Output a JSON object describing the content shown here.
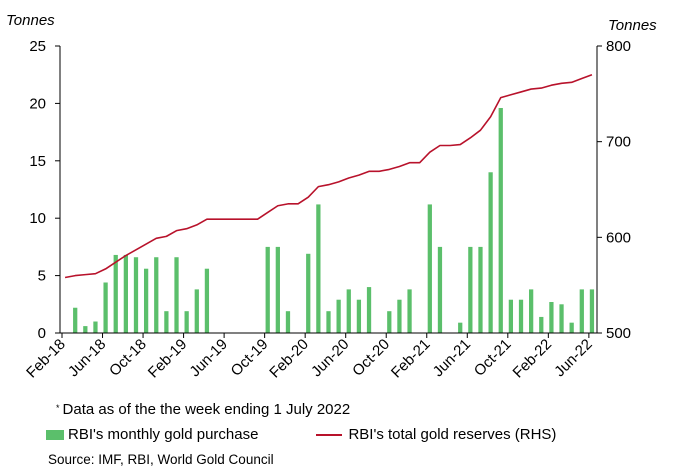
{
  "chart_data": {
    "type": "bar+line",
    "left_axis": {
      "unit_label": "Tonnes",
      "ylim": [
        0,
        25
      ],
      "ticks": [
        0,
        5,
        10,
        15,
        20,
        25
      ]
    },
    "right_axis": {
      "unit_label": "Tonnes",
      "ylim": [
        500,
        800
      ],
      "ticks": [
        500,
        600,
        700,
        800
      ]
    },
    "x_tick_labels": [
      "Feb-18",
      "Jun-18",
      "Oct-18",
      "Feb-19",
      "Jun-19",
      "Oct-19",
      "Feb-20",
      "Jun-20",
      "Oct-20",
      "Feb-21",
      "Jun-21",
      "Oct-21",
      "Feb-22",
      "Jun-22"
    ],
    "x_tick_index": [
      0,
      4,
      8,
      12,
      16,
      20,
      24,
      28,
      32,
      36,
      40,
      44,
      48,
      52
    ],
    "months": [
      "Feb-18",
      "Mar-18",
      "Apr-18",
      "May-18",
      "Jun-18",
      "Jul-18",
      "Aug-18",
      "Sep-18",
      "Oct-18",
      "Nov-18",
      "Dec-18",
      "Jan-19",
      "Feb-19",
      "Mar-19",
      "Apr-19",
      "May-19",
      "Jun-19",
      "Jul-19",
      "Aug-19",
      "Sep-19",
      "Oct-19",
      "Nov-19",
      "Dec-19",
      "Jan-20",
      "Feb-20",
      "Mar-20",
      "Apr-20",
      "May-20",
      "Jun-20",
      "Jul-20",
      "Aug-20",
      "Sep-20",
      "Oct-20",
      "Nov-20",
      "Dec-20",
      "Jan-21",
      "Feb-21",
      "Mar-21",
      "Apr-21",
      "May-21",
      "Jun-21",
      "Jul-21",
      "Aug-21",
      "Sep-21",
      "Oct-21",
      "Nov-21",
      "Dec-21",
      "Jan-22",
      "Feb-22",
      "Mar-22",
      "Apr-22",
      "May-22",
      "Jun-22"
    ],
    "series": [
      {
        "name": "RBI's monthly gold purchase",
        "type": "bar",
        "axis": "left",
        "color": "#5bbf6b",
        "values": [
          0,
          2.2,
          0.6,
          1.0,
          4.4,
          6.8,
          6.8,
          6.6,
          5.6,
          6.6,
          1.9,
          6.6,
          1.9,
          3.8,
          5.6,
          0,
          0,
          0,
          0,
          0,
          7.5,
          7.5,
          1.9,
          0,
          6.9,
          11.2,
          1.9,
          2.9,
          3.8,
          2.9,
          4.0,
          0,
          1.9,
          2.9,
          3.8,
          0,
          11.2,
          7.5,
          0,
          0.9,
          7.5,
          7.5,
          14.0,
          19.6,
          2.9,
          2.9,
          3.8,
          1.4,
          2.7,
          2.5,
          0.9,
          3.8,
          3.8
        ]
      },
      {
        "name": "RBI's total gold reserves (RHS)",
        "type": "line",
        "axis": "right",
        "color": "#b8122b",
        "values": [
          558,
          560,
          561,
          562,
          567,
          574,
          581,
          587,
          593,
          599,
          601,
          607,
          609,
          613,
          619,
          619,
          619,
          619,
          619,
          619,
          626,
          633,
          635,
          635,
          642,
          653,
          655,
          658,
          662,
          665,
          669,
          669,
          671,
          674,
          678,
          678,
          689,
          696,
          696,
          697,
          704,
          712,
          726,
          746,
          749,
          752,
          755,
          756,
          759,
          761,
          762,
          766,
          770
        ]
      }
    ]
  },
  "note": {
    "marker": "*",
    "text": "Data as of the the week ending 1 July 2022"
  },
  "legend": {
    "bar_label": "RBI's monthly gold purchase",
    "line_label": "RBI's total gold reserves (RHS)"
  },
  "source": "Source: IMF, RBI, World Gold Council"
}
